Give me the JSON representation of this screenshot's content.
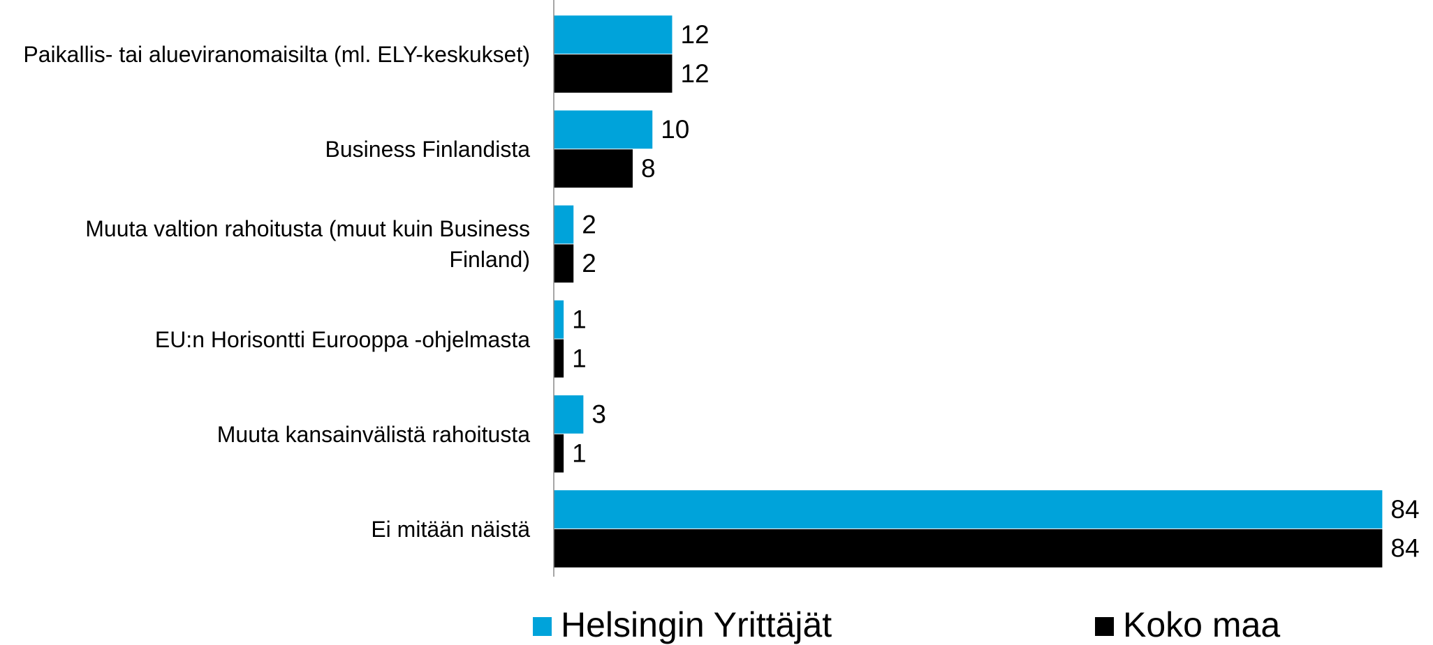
{
  "chart_data": {
    "type": "barh",
    "categories": [
      "Paikallis- tai alueviranomaisilta (ml. ELY-keskukset)",
      "Business Finlandista",
      "Muuta valtion rahoitusta (muut kuin Business Finland)",
      "EU:n Horisontti Eurooppa -ohjelmasta",
      "Muuta kansainvälistä rahoitusta",
      "Ei mitään näistä"
    ],
    "series": [
      {
        "name": "Helsingin Yrittäjät",
        "color": "#00a3da",
        "values": [
          12,
          10,
          2,
          1,
          3,
          84
        ]
      },
      {
        "name": "Koko maa",
        "color": "#000000",
        "values": [
          12,
          8,
          2,
          1,
          1,
          84
        ]
      }
    ],
    "xlim": [
      0,
      89
    ],
    "legend": "bottom"
  }
}
